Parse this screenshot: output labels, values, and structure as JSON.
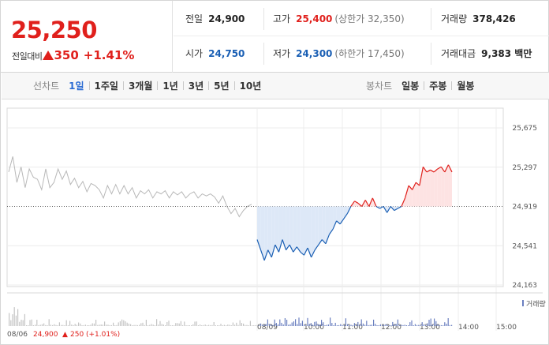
{
  "summary": {
    "current_price": "25,250",
    "change_label": "전일대비",
    "change_amount": "350",
    "change_percent": "+1.41%"
  },
  "info": {
    "prev_close_label": "전일",
    "prev_close": "24,900",
    "high_label": "고가",
    "high": "25,400",
    "upper_limit": "(상한가 32,350)",
    "volume_label": "거래량",
    "volume": "378,426",
    "open_label": "시가",
    "open": "24,750",
    "low_label": "저가",
    "low": "24,300",
    "lower_limit": "(하한가 17,450)",
    "amount_label": "거래대금",
    "amount": "9,383 백만"
  },
  "line_tabs": {
    "title": "선차트",
    "items": [
      "1일",
      "1주일",
      "3개월",
      "1년",
      "3년",
      "5년",
      "10년"
    ],
    "active": 0
  },
  "candle_tabs": {
    "title": "봉차트",
    "items": [
      "일봉",
      "주봉",
      "월봉"
    ]
  },
  "colors": {
    "up": "#e0201c",
    "down": "#1a5fb4",
    "prev": "#b8b8b8"
  },
  "chart_data": {
    "type": "line",
    "y_ticks": [
      "25,675",
      "25,297",
      "24,919",
      "24,541",
      "24,163"
    ],
    "ylim": [
      24163,
      25675
    ],
    "baseline": 24919,
    "x_ticks": [
      "08/09",
      "10:00",
      "11:00",
      "12:00",
      "13:00",
      "14:00",
      "15:00"
    ],
    "volume_label": "거래량",
    "prev_day": {
      "label": "08/06",
      "close": "24,900",
      "change": "250",
      "change_pct": "(+1.01%)",
      "values": [
        25250,
        25400,
        25150,
        25300,
        25100,
        25280,
        25200,
        25180,
        25080,
        25280,
        25100,
        25150,
        25280,
        25180,
        25260,
        25130,
        25190,
        25100,
        25160,
        25060,
        25140,
        25120,
        25080,
        25000,
        25120,
        25040,
        25130,
        25040,
        25120,
        25040,
        25100,
        25000,
        25070,
        25040,
        25080,
        25000,
        25060,
        25040,
        25070,
        25000,
        25060,
        25030,
        25060,
        25000,
        25040,
        25060,
        25000,
        25040,
        25020,
        25040,
        25010,
        24950,
        25020,
        24920,
        24850,
        24900,
        24820,
        24880,
        24920,
        24940
      ]
    },
    "today": {
      "values": [
        24600,
        24500,
        24400,
        24500,
        24430,
        24550,
        24480,
        24600,
        24500,
        24550,
        24480,
        24530,
        24480,
        24450,
        24520,
        24430,
        24500,
        24550,
        24600,
        24560,
        24650,
        24700,
        24780,
        24750,
        24800,
        24850,
        24920,
        24970,
        24950,
        24919,
        24980,
        24919,
        25000,
        24919,
        24900,
        24919,
        24860,
        24919,
        24880,
        24900,
        24919,
        25000,
        25120,
        25080,
        25150,
        25120,
        25300,
        25250,
        25270,
        25250,
        25280,
        25300,
        25250,
        25320,
        25250
      ]
    }
  }
}
